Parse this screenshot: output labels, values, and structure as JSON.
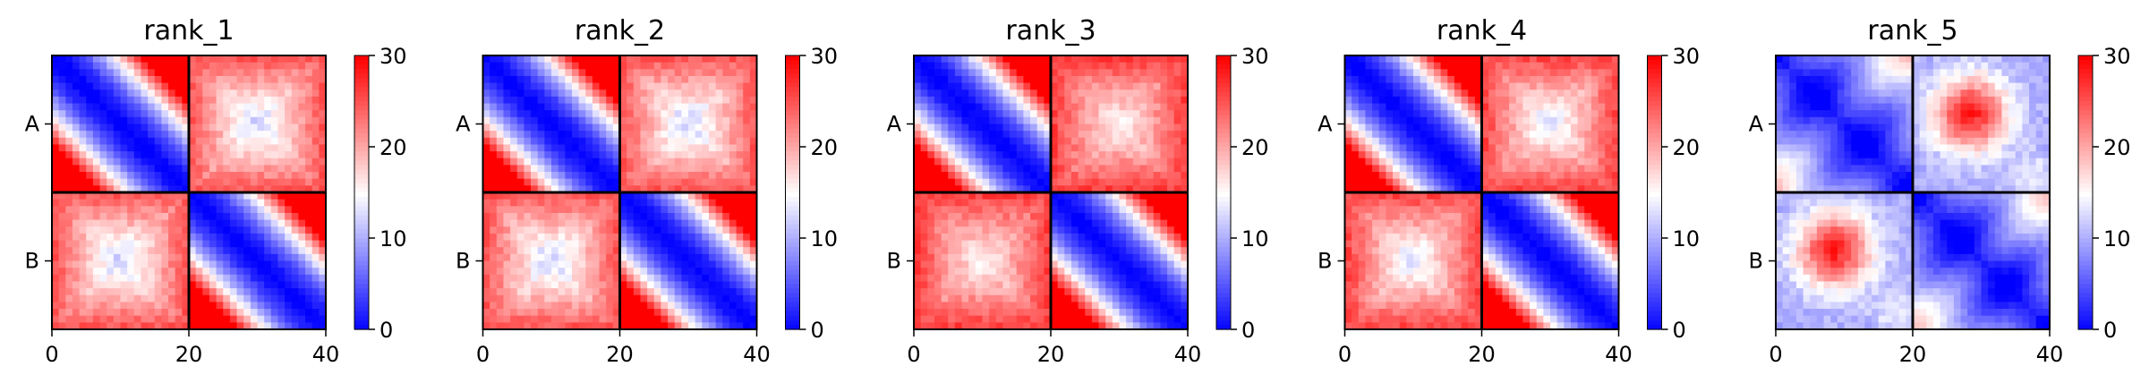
{
  "chart_data": {
    "type": "heatmap",
    "colormap": "bwr",
    "colorbar": {
      "min": 0,
      "max": 30,
      "ticks": [
        0,
        10,
        20,
        30
      ]
    },
    "x": {
      "ticks": [
        0,
        20,
        40
      ],
      "range": [
        0,
        40
      ]
    },
    "y": {
      "ticks": [
        "A",
        "B"
      ]
    },
    "matrix_size": 40,
    "chain_boundary": 20,
    "panels": [
      {
        "title": "rank_1",
        "offdiag_base": 12,
        "offdiag_max": 28,
        "pattern": 0
      },
      {
        "title": "rank_2",
        "offdiag_base": 12,
        "offdiag_max": 28,
        "pattern": 1
      },
      {
        "title": "rank_3",
        "offdiag_base": 15,
        "offdiag_max": 29,
        "pattern": 2
      },
      {
        "title": "rank_4",
        "offdiag_base": 13,
        "offdiag_max": 29,
        "pattern": 3
      },
      {
        "title": "rank_5",
        "offdiag_base": 12,
        "offdiag_max": 28,
        "pattern": 4
      }
    ]
  }
}
